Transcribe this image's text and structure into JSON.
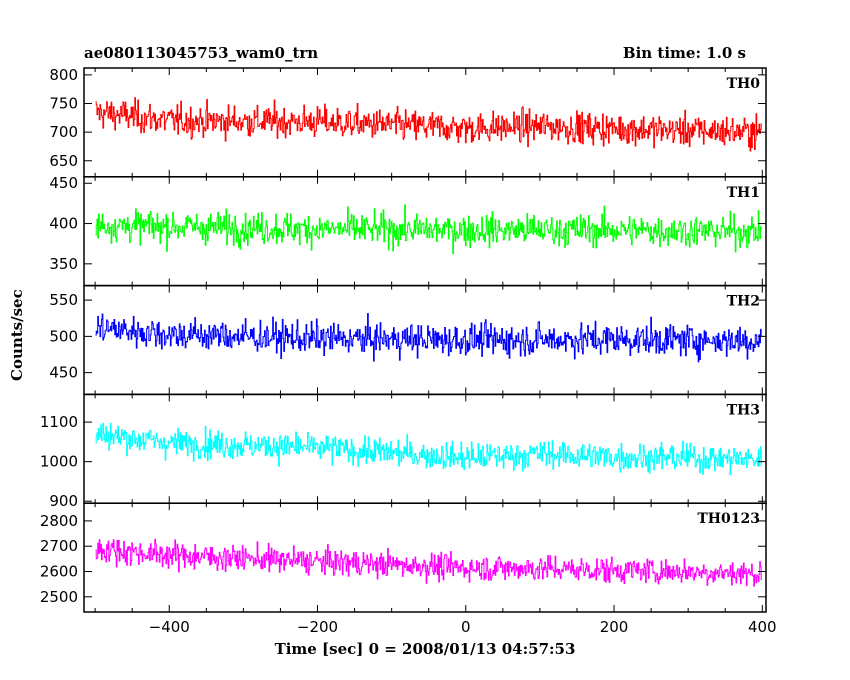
{
  "header": {
    "title": "ae080113045753_wam0_trn",
    "bin_time": "Bin time: 1.0 s"
  },
  "chart_data": {
    "type": "line",
    "xlabel": "Time [sec] 0 = 2008/01/13 04:57:53",
    "ylabel": "Counts/sec",
    "xlim": [
      -515,
      405
    ],
    "xticks": [
      -400,
      -200,
      0,
      200,
      400
    ],
    "x_start": -499,
    "x_end": 399,
    "bin_seconds": 1.0,
    "panels": [
      {
        "name": "TH0",
        "color": "#ff0000",
        "ylim": [
          622,
          812
        ],
        "yticks": [
          650,
          700,
          750,
          800
        ],
        "mean": [
          [
            -499,
            735
          ],
          [
            -400,
            720
          ],
          [
            -200,
            718
          ],
          [
            0,
            707
          ],
          [
            100,
            710
          ],
          [
            200,
            706
          ],
          [
            300,
            703
          ],
          [
            399,
            700
          ]
        ],
        "spread": 35
      },
      {
        "name": "TH1",
        "color": "#00ff00",
        "ylim": [
          323,
          458
        ],
        "yticks": [
          350,
          400,
          450
        ],
        "mean": [
          [
            -499,
            398
          ],
          [
            -200,
            393
          ],
          [
            0,
            392
          ],
          [
            200,
            392
          ],
          [
            399,
            390
          ]
        ],
        "spread": 25
      },
      {
        "name": "TH2",
        "color": "#0000ff",
        "ylim": [
          420,
          570
        ],
        "yticks": [
          450,
          500,
          550
        ],
        "mean": [
          [
            -499,
            512
          ],
          [
            -400,
            503
          ],
          [
            -200,
            497
          ],
          [
            0,
            495
          ],
          [
            200,
            496
          ],
          [
            399,
            494
          ]
        ],
        "spread": 28
      },
      {
        "name": "TH3",
        "color": "#00ffff",
        "ylim": [
          895,
          1170
        ],
        "yticks": [
          900,
          1000,
          1100
        ],
        "mean": [
          [
            -499,
            1070
          ],
          [
            -400,
            1048
          ],
          [
            -200,
            1035
          ],
          [
            0,
            1010
          ],
          [
            100,
            1020
          ],
          [
            200,
            1012
          ],
          [
            300,
            1010
          ],
          [
            399,
            1005
          ]
        ],
        "spread": 45
      },
      {
        "name": "TH0123",
        "color": "#ff00ff",
        "ylim": [
          2440,
          2870
        ],
        "yticks": [
          2500,
          2600,
          2700,
          2800
        ],
        "mean": [
          [
            -499,
            2690
          ],
          [
            -400,
            2665
          ],
          [
            -200,
            2640
          ],
          [
            0,
            2615
          ],
          [
            100,
            2612
          ],
          [
            200,
            2605
          ],
          [
            300,
            2600
          ],
          [
            399,
            2590
          ]
        ],
        "spread": 65
      }
    ]
  }
}
